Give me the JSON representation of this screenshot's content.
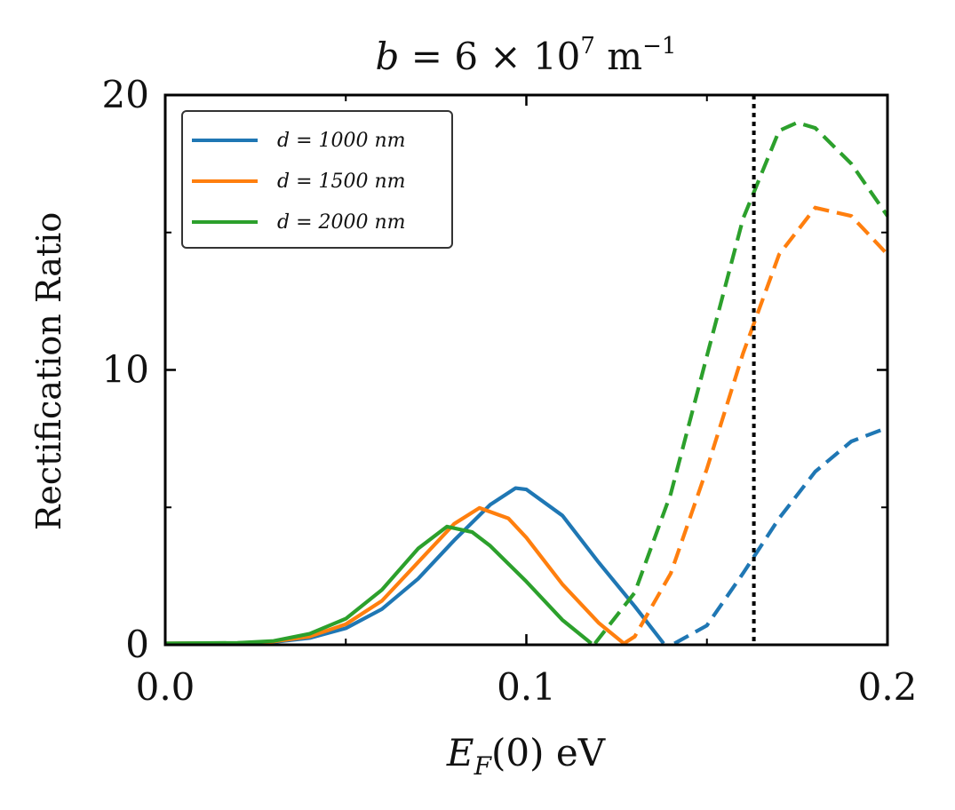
{
  "chart_data": {
    "type": "line",
    "title_parts": {
      "lhs": "b",
      "eq": " = 6 × 10",
      "exp": "7",
      "unit": " m",
      "unit_exp": "−1"
    },
    "xlabel_parts": {
      "main": "E",
      "sub": "F",
      "rest": "(0) eV"
    },
    "ylabel": "Rectification Ratio",
    "xlim": [
      0.0,
      0.2
    ],
    "ylim": [
      0,
      20
    ],
    "x_ticks": [
      "0.0",
      "0.1",
      "0.2"
    ],
    "y_ticks": [
      "0",
      "10",
      "20"
    ],
    "vline_x": 0.163,
    "legend_placement": "top-left",
    "series": [
      {
        "name": "d = 1000 nm",
        "color": "#1f77b4",
        "solid": [
          [
            0.0,
            0.05
          ],
          [
            0.02,
            0.06
          ],
          [
            0.03,
            0.1
          ],
          [
            0.04,
            0.25
          ],
          [
            0.05,
            0.6
          ],
          [
            0.06,
            1.3
          ],
          [
            0.07,
            2.4
          ],
          [
            0.08,
            3.8
          ],
          [
            0.09,
            5.1
          ],
          [
            0.097,
            5.7
          ],
          [
            0.1,
            5.65
          ],
          [
            0.11,
            4.7
          ],
          [
            0.12,
            3.0
          ],
          [
            0.13,
            1.4
          ],
          [
            0.138,
            0.05
          ]
        ],
        "dashed": [
          [
            0.141,
            0.05
          ],
          [
            0.15,
            0.7
          ],
          [
            0.16,
            2.6
          ],
          [
            0.17,
            4.6
          ],
          [
            0.18,
            6.3
          ],
          [
            0.19,
            7.4
          ],
          [
            0.2,
            7.9
          ]
        ]
      },
      {
        "name": "d = 1500 nm",
        "color": "#ff7f0e",
        "solid": [
          [
            0.0,
            0.05
          ],
          [
            0.02,
            0.06
          ],
          [
            0.03,
            0.12
          ],
          [
            0.04,
            0.3
          ],
          [
            0.05,
            0.75
          ],
          [
            0.06,
            1.6
          ],
          [
            0.07,
            3.0
          ],
          [
            0.08,
            4.4
          ],
          [
            0.087,
            4.98
          ],
          [
            0.095,
            4.6
          ],
          [
            0.1,
            3.9
          ],
          [
            0.11,
            2.2
          ],
          [
            0.12,
            0.8
          ],
          [
            0.127,
            0.05
          ]
        ],
        "dashed": [
          [
            0.127,
            0.05
          ],
          [
            0.13,
            0.3
          ],
          [
            0.14,
            2.6
          ],
          [
            0.15,
            6.4
          ],
          [
            0.16,
            10.6
          ],
          [
            0.17,
            14.2
          ],
          [
            0.18,
            15.9
          ],
          [
            0.19,
            15.6
          ],
          [
            0.2,
            14.2
          ]
        ]
      },
      {
        "name": "d = 2000 nm",
        "color": "#2ca02c",
        "solid": [
          [
            0.0,
            0.05
          ],
          [
            0.02,
            0.07
          ],
          [
            0.03,
            0.14
          ],
          [
            0.04,
            0.4
          ],
          [
            0.05,
            0.95
          ],
          [
            0.06,
            2.0
          ],
          [
            0.07,
            3.5
          ],
          [
            0.078,
            4.3
          ],
          [
            0.085,
            4.1
          ],
          [
            0.09,
            3.6
          ],
          [
            0.1,
            2.3
          ],
          [
            0.11,
            0.9
          ],
          [
            0.118,
            0.05
          ]
        ],
        "dashed": [
          [
            0.119,
            0.05
          ],
          [
            0.13,
            1.9
          ],
          [
            0.14,
            5.5
          ],
          [
            0.15,
            10.5
          ],
          [
            0.16,
            15.5
          ],
          [
            0.17,
            18.7
          ],
          [
            0.175,
            19.0
          ],
          [
            0.18,
            18.8
          ],
          [
            0.19,
            17.5
          ],
          [
            0.2,
            15.6
          ]
        ]
      }
    ]
  }
}
